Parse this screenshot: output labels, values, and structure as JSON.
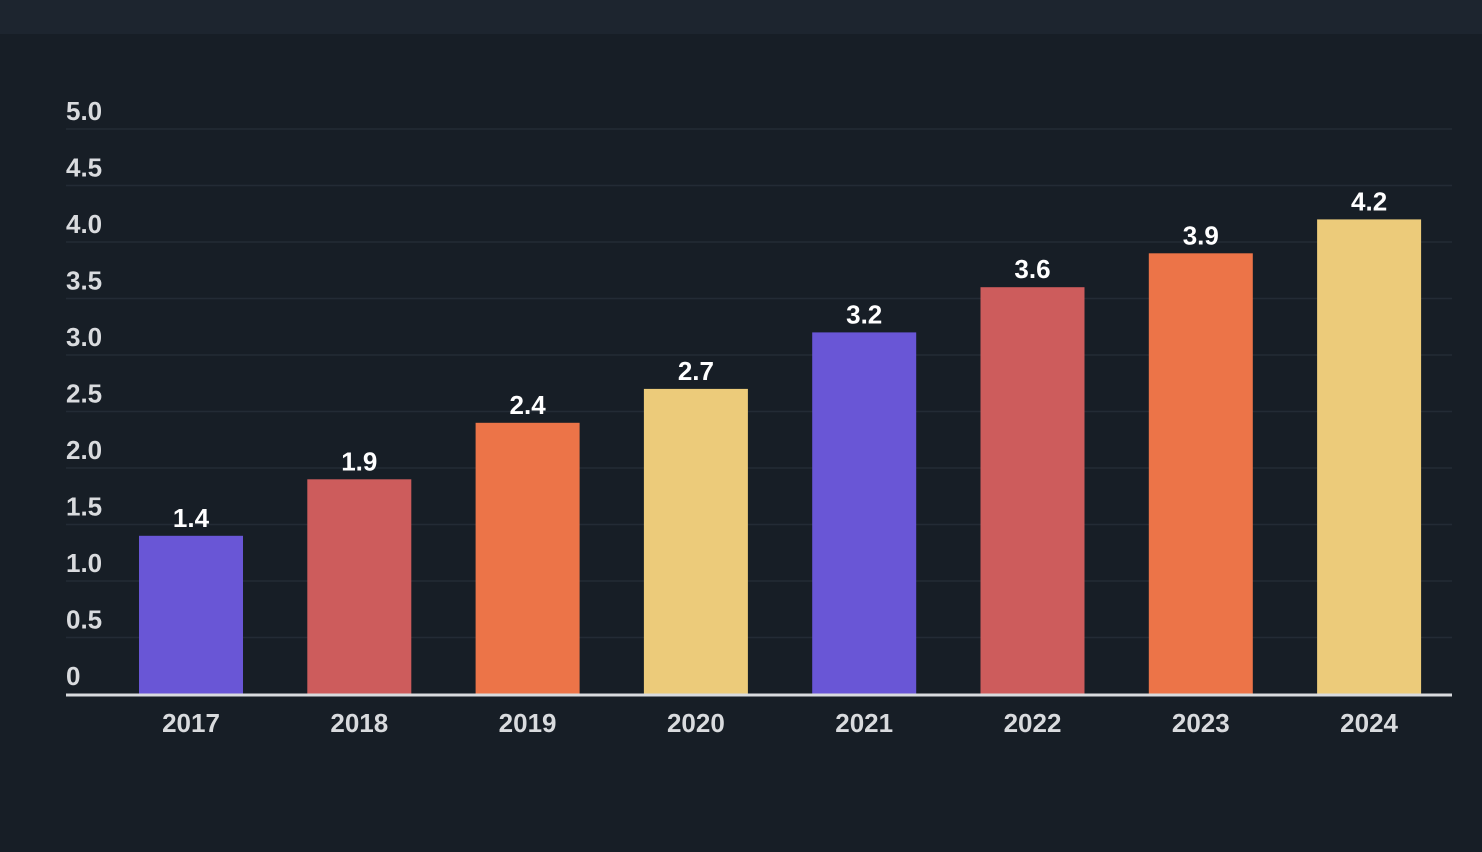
{
  "chart_data": {
    "type": "bar",
    "categories": [
      "2017",
      "2018",
      "2019",
      "2020",
      "2021",
      "2022",
      "2023",
      "2024"
    ],
    "values": [
      1.4,
      1.9,
      2.4,
      2.7,
      3.2,
      3.6,
      3.9,
      4.2
    ],
    "value_labels": [
      "1.4",
      "1.9",
      "2.4",
      "2.7",
      "3.2",
      "3.6",
      "3.9",
      "4.2"
    ],
    "bar_colors": [
      "#6956d6",
      "#cd5c5c",
      "#ec7448",
      "#eccb7a",
      "#6956d6",
      "#cd5c5c",
      "#ec7448",
      "#eccb7a"
    ],
    "yticks": [
      0,
      0.5,
      1.0,
      1.5,
      2.0,
      2.5,
      3.0,
      3.5,
      4.0,
      4.5,
      5.0
    ],
    "ytick_labels": [
      "0",
      "0.5",
      "1.0",
      "1.5",
      "2.0",
      "2.5",
      "3.0",
      "3.5",
      "4.0",
      "4.5",
      "5.0"
    ],
    "ylim": [
      0,
      5
    ],
    "title": "",
    "xlabel": "",
    "ylabel": "",
    "grid": true,
    "legend": "none",
    "colors": {
      "background": "#171e26",
      "top_bar": "#1d252f",
      "gridline": "#232b35",
      "axis_line": "#d9dbde",
      "tick_text": "#d9dbde",
      "value_text": "#ffffff"
    }
  }
}
